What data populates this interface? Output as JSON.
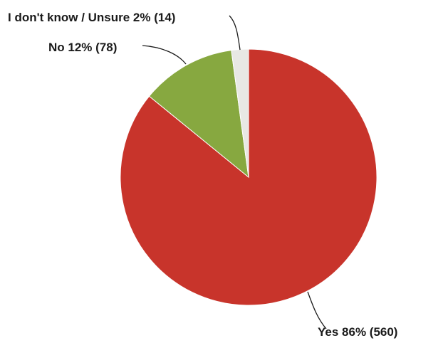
{
  "chart_data": {
    "type": "pie",
    "title": "",
    "legend": "none",
    "slices": [
      {
        "label": "Yes",
        "percent": "86%",
        "count": 560,
        "text": "Yes 86% (560)",
        "color": "#c8342b"
      },
      {
        "label": "No",
        "percent": "12%",
        "count": 78,
        "text": "No 12% (78)",
        "color": "#87a840"
      },
      {
        "label": "I don't know / Unsure",
        "percent": "2%",
        "count": 14,
        "text": "I don't know / Unsure 2% (14)",
        "color": "#e8e8e4"
      }
    ]
  }
}
